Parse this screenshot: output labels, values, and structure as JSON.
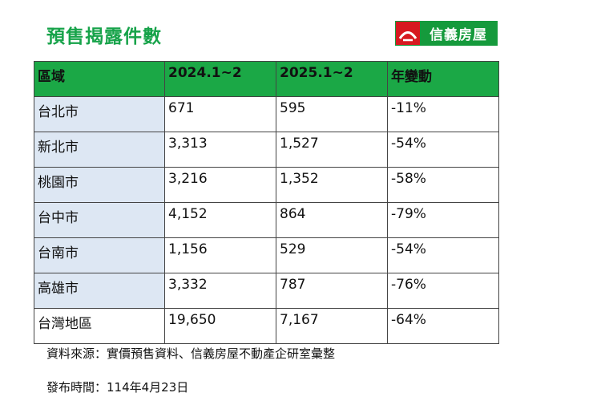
{
  "title": "預售揭露件數",
  "logo": {
    "text": "信義房屋",
    "icon": "sinyi-logo-icon",
    "brand_red": "#d71920",
    "brand_green": "#159a3c"
  },
  "table": {
    "header_color": "#1ba846",
    "headers": [
      "區域",
      "2024.1~2",
      "2025.1~2",
      "年變動"
    ],
    "rows": [
      [
        "台北市",
        "671",
        "595",
        "-11%"
      ],
      [
        "新北市",
        "3,313",
        "1,527",
        "-54%"
      ],
      [
        "桃園市",
        "3,216",
        "1,352",
        "-58%"
      ],
      [
        "台中市",
        "4,152",
        "864",
        "-79%"
      ],
      [
        "台南市",
        "1,156",
        "529",
        "-54%"
      ],
      [
        "高雄市",
        "3,332",
        "787",
        "-76%"
      ],
      [
        "台灣地區",
        "19,650",
        "7,167",
        "-64%"
      ]
    ]
  },
  "source": "資料來源：實價預售資料、信義房屋不動產企研室彙整",
  "publish": "發布時間：114年4月23日"
}
